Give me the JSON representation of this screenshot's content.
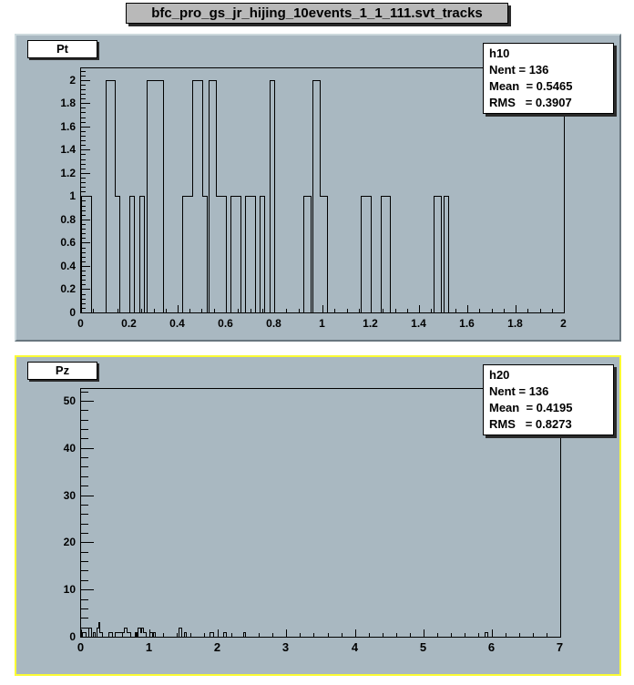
{
  "window": {
    "title": "bfc_pro_gs_jr_hijing_10events_1_1_111.svt_tracks"
  },
  "colors": {
    "canvas_bg": "#ffffff",
    "pad_bg": "#a9b8c1",
    "line": "#000000",
    "selected_pad_border": "#fbfb33",
    "title_pave_bg": "#b9b9b9",
    "pave_bg": "#ffffff"
  },
  "chart_data": [
    {
      "type": "bar",
      "title": "Pt",
      "legend_position": "none",
      "grid": false,
      "stats": {
        "lines": [
          "h10",
          "Nent = 136",
          "Mean  = 0.5465",
          "RMS   = 0.3907"
        ]
      },
      "x_axis": {
        "min": 0,
        "max": 2,
        "minor_step": 0.05,
        "major": [
          [
            0,
            "0"
          ],
          [
            0.2,
            "0.2"
          ],
          [
            0.4,
            "0.4"
          ],
          [
            0.6,
            "0.6"
          ],
          [
            0.8,
            "0.8"
          ],
          [
            1,
            "1"
          ],
          [
            1.2,
            "1.2"
          ],
          [
            1.4,
            "1.4"
          ],
          [
            1.6,
            "1.6"
          ],
          [
            1.8,
            "1.8"
          ],
          [
            2,
            "2"
          ]
        ]
      },
      "y_axis": {
        "min": 0,
        "max": 2.1,
        "minor_step": 0.04,
        "major": [
          [
            0,
            "0"
          ],
          [
            0.2,
            "0.2"
          ],
          [
            0.4,
            "0.4"
          ],
          [
            0.6,
            "0.6"
          ],
          [
            0.8,
            "0.8"
          ],
          [
            1,
            "1"
          ],
          [
            1.2,
            "1.2"
          ],
          [
            1.4,
            "1.4"
          ],
          [
            1.6,
            "1.6"
          ],
          [
            1.8,
            "1.8"
          ],
          [
            2,
            "2"
          ]
        ]
      },
      "bars": [
        [
          0.0,
          0.04,
          1
        ],
        [
          0.1,
          0.14,
          2
        ],
        [
          0.14,
          0.16,
          1
        ],
        [
          0.2,
          0.22,
          1
        ],
        [
          0.24,
          0.26,
          1
        ],
        [
          0.27,
          0.34,
          2
        ],
        [
          0.42,
          0.46,
          1
        ],
        [
          0.46,
          0.5,
          2
        ],
        [
          0.5,
          0.52,
          1
        ],
        [
          0.53,
          0.56,
          2
        ],
        [
          0.56,
          0.6,
          1
        ],
        [
          0.62,
          0.66,
          1
        ],
        [
          0.68,
          0.72,
          1
        ],
        [
          0.74,
          0.76,
          1
        ],
        [
          0.78,
          0.8,
          2
        ],
        [
          0.92,
          0.95,
          1
        ],
        [
          0.96,
          0.99,
          2
        ],
        [
          0.99,
          1.02,
          1
        ],
        [
          1.16,
          1.2,
          1
        ],
        [
          1.24,
          1.28,
          1
        ],
        [
          1.46,
          1.49,
          1
        ],
        [
          1.5,
          1.52,
          1
        ]
      ],
      "selected": false
    },
    {
      "type": "bar",
      "title": "Pz",
      "legend_position": "none",
      "grid": false,
      "stats": {
        "lines": [
          "h20",
          "Nent = 136",
          "Mean  = 0.4195",
          "RMS   = 0.8273"
        ]
      },
      "x_axis": {
        "min": 0,
        "max": 7,
        "minor_step": 0.2,
        "major": [
          [
            0,
            "0"
          ],
          [
            1,
            "1"
          ],
          [
            2,
            "2"
          ],
          [
            3,
            "3"
          ],
          [
            4,
            "4"
          ],
          [
            5,
            "5"
          ],
          [
            6,
            "6"
          ],
          [
            7,
            "7"
          ]
        ]
      },
      "y_axis": {
        "min": 0,
        "max": 52.5,
        "minor_step": 2,
        "major": [
          [
            0,
            "0"
          ],
          [
            10,
            "10"
          ],
          [
            20,
            "20"
          ],
          [
            30,
            "30"
          ],
          [
            40,
            "40"
          ],
          [
            50,
            "50"
          ]
        ]
      },
      "bars": [
        [
          0.01,
          0.07,
          1
        ],
        [
          0.1,
          0.15,
          2
        ],
        [
          0.17,
          0.2,
          1
        ],
        [
          0.22,
          0.25,
          2
        ],
        [
          0.25,
          0.27,
          3
        ],
        [
          0.27,
          0.3,
          1
        ],
        [
          0.4,
          0.45,
          1
        ],
        [
          0.49,
          0.63,
          1
        ],
        [
          0.63,
          0.66,
          2
        ],
        [
          0.66,
          0.72,
          1
        ],
        [
          0.78,
          0.81,
          1
        ],
        [
          0.83,
          0.86,
          2
        ],
        [
          0.86,
          0.88,
          1
        ],
        [
          0.88,
          0.91,
          2
        ],
        [
          0.91,
          0.95,
          1
        ],
        [
          1.0,
          1.04,
          1
        ],
        [
          1.05,
          1.08,
          1
        ],
        [
          1.42,
          1.46,
          2
        ],
        [
          1.5,
          1.53,
          1
        ],
        [
          1.87,
          1.93,
          1
        ],
        [
          2.08,
          2.11,
          1
        ],
        [
          2.37,
          2.4,
          1
        ],
        [
          5.9,
          5.94,
          1
        ]
      ],
      "selected": true
    }
  ]
}
